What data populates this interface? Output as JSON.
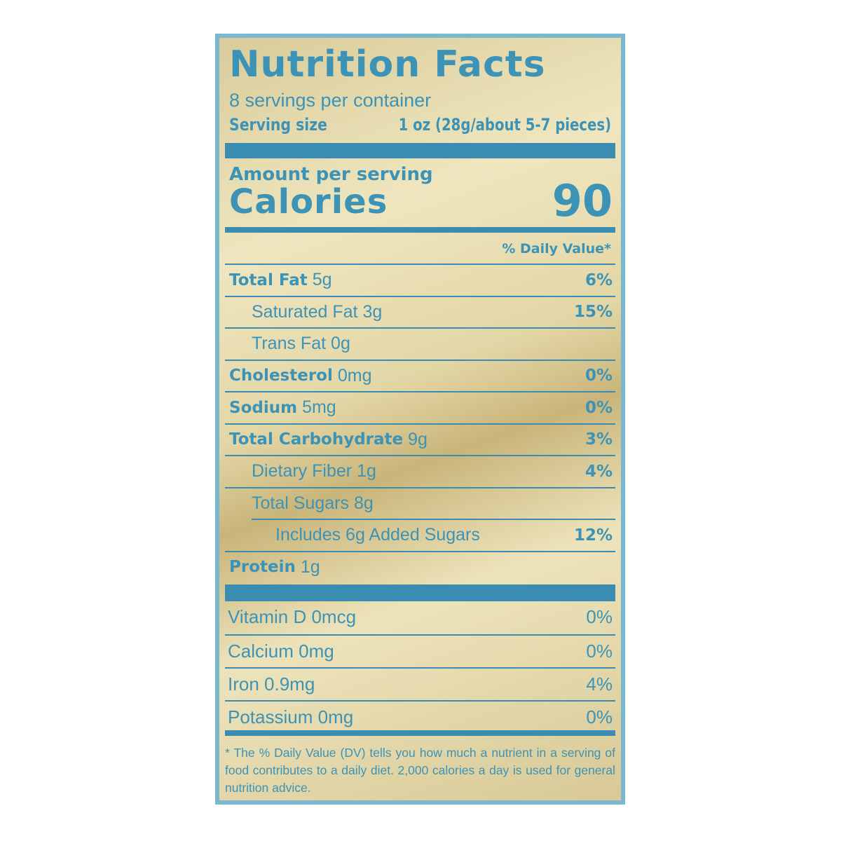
{
  "title": "Nutrition Facts",
  "servings": "8 servings per container",
  "serving_size": {
    "label": "Serving size",
    "value": "1 oz (28g/about 5-7 pieces)"
  },
  "amount_per_serving": "Amount per serving",
  "calories": {
    "label": "Calories",
    "value": "90"
  },
  "dv_header": "% Daily Value*",
  "rows": [
    {
      "name": "Total Fat",
      "amount": "5g",
      "dv": "6%",
      "level": 0
    },
    {
      "name": "Saturated Fat",
      "amount": "3g",
      "dv": "15%",
      "level": 1
    },
    {
      "name": "Trans Fat",
      "amount": "0g",
      "level": 1
    },
    {
      "name": "Cholesterol",
      "amount": "0mg",
      "dv": "0%",
      "level": 0
    },
    {
      "name": "Sodium",
      "amount": "5mg",
      "dv": "0%",
      "level": 0
    },
    {
      "name": "Total Carbohydrate",
      "amount": "9g",
      "dv": "3%",
      "level": 0
    },
    {
      "name": "Dietary Fiber",
      "amount": "1g",
      "dv": "4%",
      "level": 1
    },
    {
      "name": "Total Sugars",
      "amount": "8g",
      "level": 1
    },
    {
      "name": "Includes 6g Added Sugars",
      "dv": "12%",
      "level": 2
    },
    {
      "name": "Protein",
      "amount": "1g",
      "level": 0
    }
  ],
  "vitamins": [
    {
      "name": "Vitamin D 0mcg",
      "dv": "0%"
    },
    {
      "name": "Calcium 0mg",
      "dv": "0%"
    },
    {
      "name": "Iron 0.9mg",
      "dv": "4%"
    },
    {
      "name": "Potassium 0mg",
      "dv": "0%"
    }
  ],
  "footnote": "* The % Daily Value (DV) tells you how much a nutrient in a serving of food contributes to a daily diet. 2,000 calories a day is used for general nutrition advice."
}
